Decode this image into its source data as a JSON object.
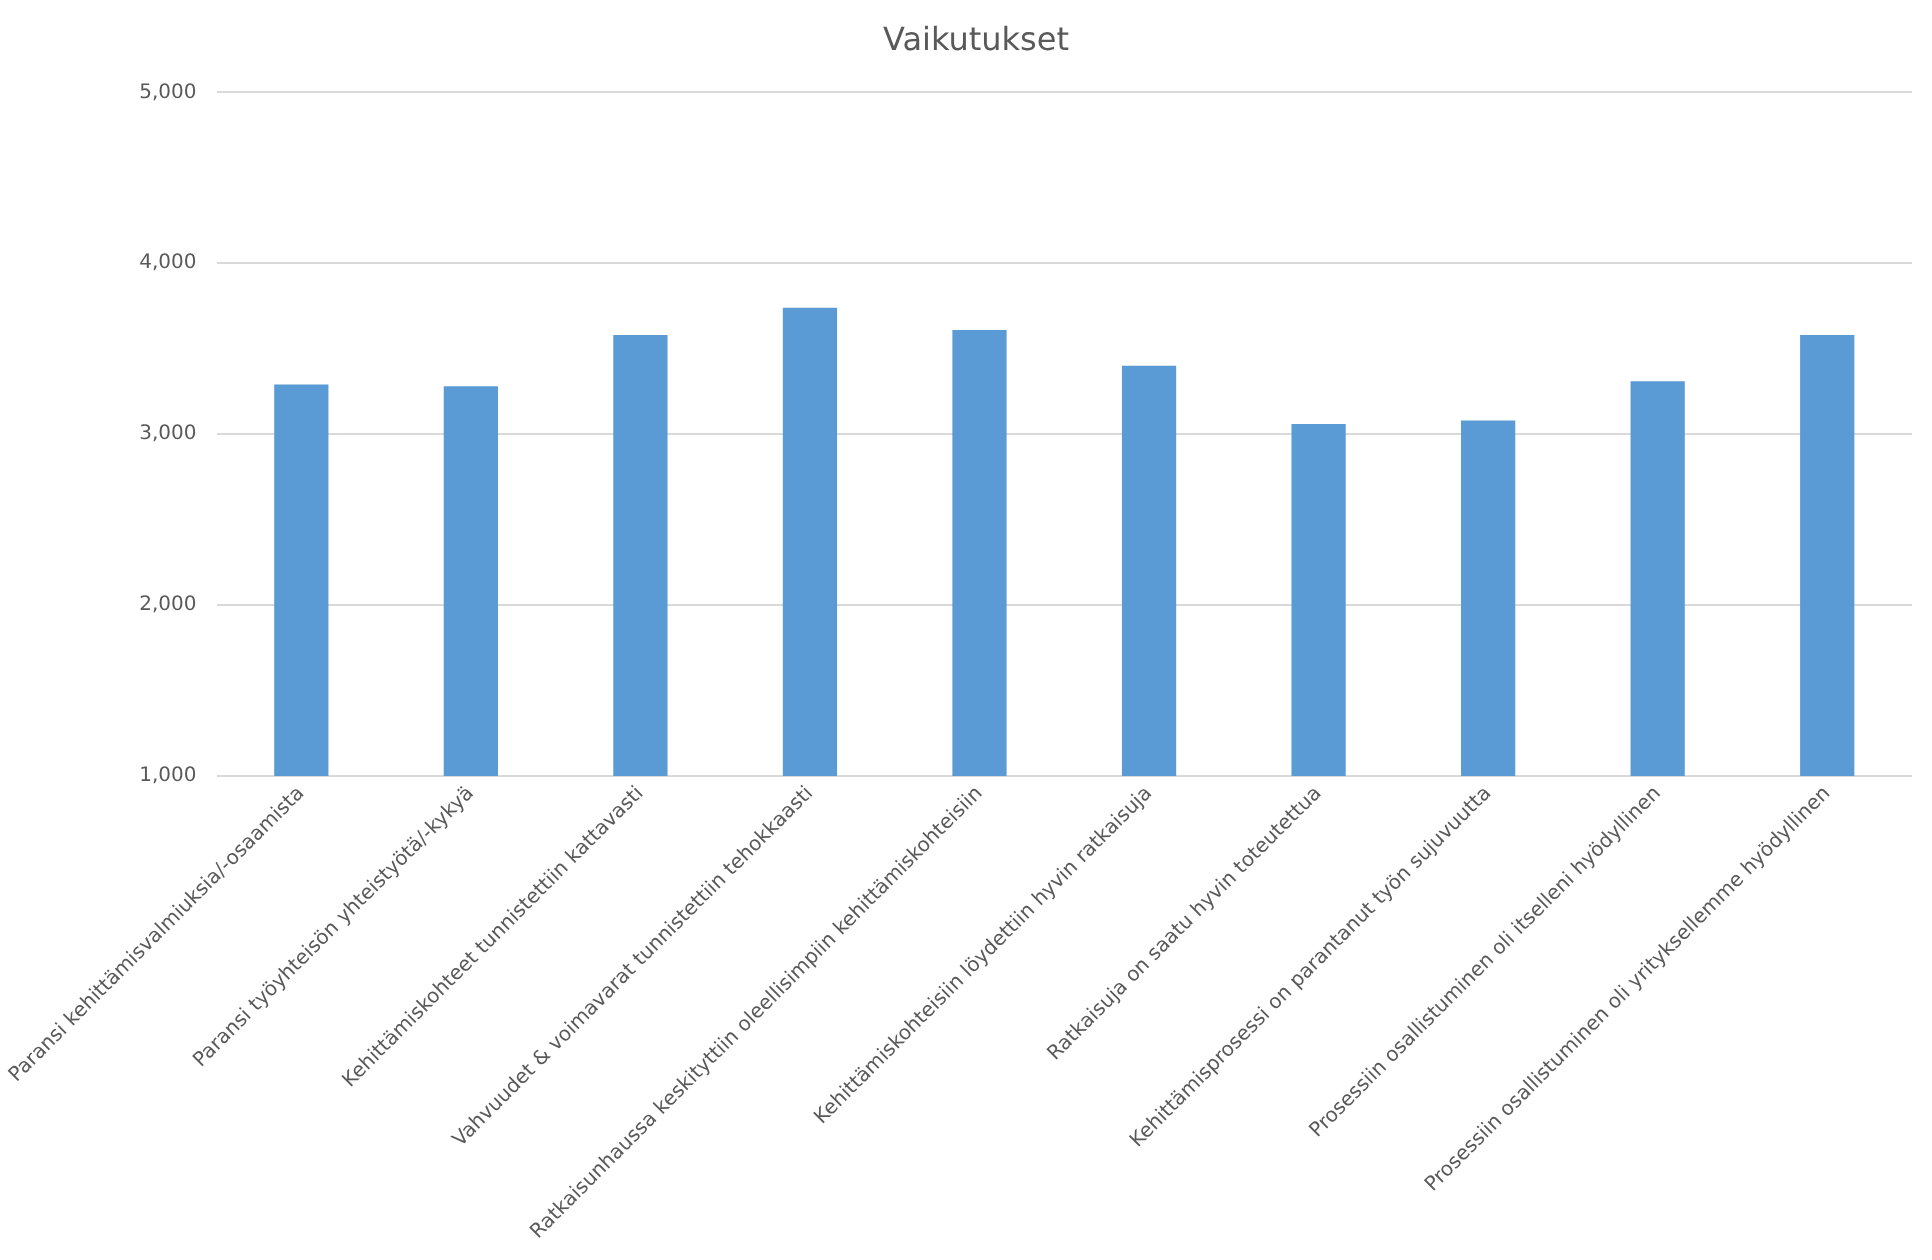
{
  "chart_data": {
    "type": "bar",
    "title": "Vaikutukset",
    "categories": [
      "Paransi kehittämisvalmiuksia/-osaamista",
      "Paransi työyhteisön yhteistyötä/-kykyä",
      "Kehittämiskohteet tunnistettiin kattavasti",
      "Vahvuudet & voimavarat tunnistettiin tehokkaasti",
      "Ratkaisunhaussa keskityttiin oleellisimpiin kehittämiskohteisiin",
      "Kehittämiskohteisiin löydettiin hyvin ratkaisuja",
      "Ratkaisuja on saatu hyvin toteutettua",
      "Kehittämisprosessi on parantanut työn sujuvuutta",
      "Prosessiin osallistuminen oli itselleni hyödyllinen",
      "Prosessiin osallistuminen oli yrityksellemme hyödyllinen"
    ],
    "values": [
      3290.0,
      3280.0,
      3580.0,
      3740.0,
      3610.0,
      3400.0,
      3060.0,
      3080.0,
      3310.0,
      3580.0
    ],
    "color": "#5b9bd5",
    "ylim": [
      1000,
      5000
    ],
    "yticks": [
      {
        "value": 1000,
        "label": "1,000"
      },
      {
        "value": 2000,
        "label": "2,000"
      },
      {
        "value": 3000,
        "label": "3,000"
      },
      {
        "value": 4000,
        "label": "4,000"
      },
      {
        "value": 5000,
        "label": "5,000"
      }
    ],
    "grid": "y"
  }
}
